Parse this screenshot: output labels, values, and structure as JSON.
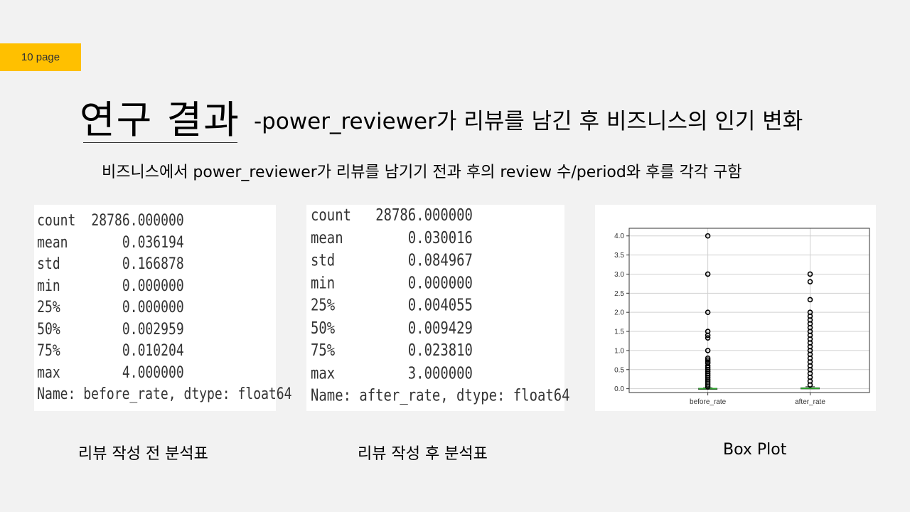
{
  "page_badge": "10 page",
  "title": {
    "main": "연구 결과",
    "sub": "-power_reviewer가 리뷰를 남긴 후 비즈니스의 인기 변화"
  },
  "subtitle": "비즈니스에서 power_reviewer가 리뷰를 남기기 전과 후의 review 수/period와 후를 각각 구함",
  "before_table": {
    "rows": [
      {
        "key": "count",
        "value": "28786.000000"
      },
      {
        "key": "mean",
        "value": "0.036194"
      },
      {
        "key": "std",
        "value": "0.166878"
      },
      {
        "key": "min",
        "value": "0.000000"
      },
      {
        "key": "25%",
        "value": "0.000000"
      },
      {
        "key": "50%",
        "value": "0.002959"
      },
      {
        "key": "75%",
        "value": "0.010204"
      },
      {
        "key": "max",
        "value": "4.000000"
      }
    ],
    "footer": "Name: before_rate, dtype: float64"
  },
  "after_table": {
    "rows": [
      {
        "key": "count",
        "value": "28786.000000"
      },
      {
        "key": "mean",
        "value": "0.030016"
      },
      {
        "key": "std",
        "value": "0.084967"
      },
      {
        "key": "min",
        "value": "0.000000"
      },
      {
        "key": "25%",
        "value": "0.004055"
      },
      {
        "key": "50%",
        "value": "0.009429"
      },
      {
        "key": "75%",
        "value": "0.023810"
      },
      {
        "key": "max",
        "value": "3.000000"
      }
    ],
    "footer": "Name: after_rate, dtype: float64"
  },
  "captions": {
    "before": "리뷰 작성 전 분석표",
    "after": "리뷰 작성 후 분석표",
    "boxplot": "Box Plot"
  },
  "colors": {
    "badge": "#ffc000",
    "median": "#2ca02c",
    "outlier": "#000000"
  },
  "chart_data": {
    "type": "boxplot",
    "categories": [
      "before_rate",
      "after_rate"
    ],
    "ylim": [
      -0.1,
      4.2
    ],
    "yticks": [
      0.0,
      0.5,
      1.0,
      1.5,
      2.0,
      2.5,
      3.0,
      3.5,
      4.0
    ],
    "grid": true,
    "series": [
      {
        "q1": 0.0,
        "median": 0.002959,
        "q3": 0.010204,
        "whisker_low": 0.0,
        "whisker_high": 0.025,
        "outliers": [
          4.0,
          3.0,
          2.0,
          1.5,
          1.4,
          1.33,
          1.0,
          0.8,
          0.75,
          0.7,
          0.67,
          0.6,
          0.55,
          0.5,
          0.45,
          0.4,
          0.35,
          0.3,
          0.25,
          0.2,
          0.15,
          0.1,
          0.05
        ]
      },
      {
        "q1": 0.004055,
        "median": 0.009429,
        "q3": 0.02381,
        "whisker_low": 0.0,
        "whisker_high": 0.052,
        "outliers": [
          3.0,
          2.8,
          2.33,
          2.0,
          1.9,
          1.8,
          1.7,
          1.6,
          1.5,
          1.4,
          1.3,
          1.2,
          1.1,
          1.0,
          0.9,
          0.8,
          0.7,
          0.6,
          0.5,
          0.4,
          0.3,
          0.2,
          0.1
        ]
      }
    ]
  }
}
